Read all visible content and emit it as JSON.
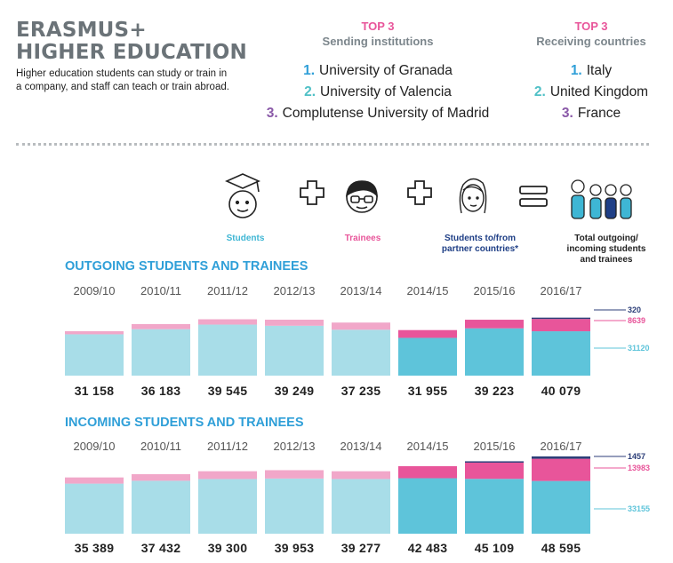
{
  "header": {
    "title_line1": "ERASMUS+",
    "title_line2": "HIGHER EDUCATION",
    "intro": "Higher education students can study or train in a company, and staff can teach or train abroad."
  },
  "sending": {
    "top_label": "TOP 3",
    "subtitle": "Sending institutions",
    "items": [
      {
        "rank": "1.",
        "name": "University of Granada"
      },
      {
        "rank": "2.",
        "name": "University of Valencia"
      },
      {
        "rank": "3.",
        "name": "Complutense University of Madrid"
      }
    ]
  },
  "receiving": {
    "top_label": "TOP 3",
    "subtitle": "Receiving countries",
    "items": [
      {
        "rank": "1.",
        "name": "Italy"
      },
      {
        "rank": "2.",
        "name": "United Kingdom"
      },
      {
        "rank": "3.",
        "name": "France"
      }
    ]
  },
  "legend": {
    "students": "Students",
    "trainees": "Trainees",
    "partner": "Students to/from partner countries*",
    "total": "Total outgoing/ incoming students and trainees",
    "plus": "+",
    "equals": "="
  },
  "colors": {
    "students": "#a8dde8",
    "students_last": "#5ec4da",
    "trainees": "#f1a7c9",
    "trainees_last": "#e8559a",
    "partner": "#2c3e78",
    "title_blue": "#2f9fd8",
    "legend_students": "#3eb6d4",
    "legend_trainees": "#e8559a",
    "legend_partner": "#1f3f86"
  },
  "chart_data": [
    {
      "type": "bar",
      "title": "OUTGOING STUDENTS AND TRAINEES",
      "stacked": true,
      "categories": [
        "2009/10",
        "2010/11",
        "2011/12",
        "2012/13",
        "2013/14",
        "2014/15",
        "2015/16",
        "2016/17"
      ],
      "totals": [
        "31 158",
        "36 183",
        "39 545",
        "39 249",
        "37 235",
        "31 955",
        "39 223",
        "40 079"
      ],
      "total_values": [
        31158,
        36183,
        39545,
        39249,
        37235,
        31955,
        39223,
        40079
      ],
      "series": [
        {
          "name": "Students",
          "values": [
            29000,
            32600,
            35800,
            35000,
            32200,
            26500,
            33200,
            31120
          ]
        },
        {
          "name": "Trainees",
          "values": [
            2158,
            3583,
            3745,
            4249,
            5035,
            5455,
            6023,
            8639
          ]
        },
        {
          "name": "Students to/from partner countries*",
          "values": [
            0,
            0,
            0,
            0,
            0,
            0,
            0,
            320
          ]
        }
      ],
      "last_labels": [
        "320",
        "8639",
        "31120"
      ],
      "ylim": [
        0,
        48595
      ]
    },
    {
      "type": "bar",
      "title": "INCOMING STUDENTS AND TRAINEES",
      "stacked": true,
      "categories": [
        "2009/10",
        "2010/11",
        "2011/12",
        "2012/13",
        "2013/14",
        "2014/15",
        "2015/16",
        "2016/17"
      ],
      "totals": [
        "35 389",
        "37 432",
        "39 300",
        "39 953",
        "39 277",
        "42 483",
        "45 109",
        "48 595"
      ],
      "total_values": [
        35389,
        37432,
        39300,
        39953,
        39277,
        42483,
        45109,
        48595
      ],
      "series": [
        {
          "name": "Students",
          "values": [
            31500,
            33300,
            34400,
            34700,
            34400,
            34900,
            34500,
            33155
          ]
        },
        {
          "name": "Trainees",
          "values": [
            3889,
            4132,
            4900,
            5253,
            4877,
            7583,
            10209,
            13983
          ]
        },
        {
          "name": "Students to/from partner countries*",
          "values": [
            0,
            0,
            0,
            0,
            0,
            0,
            400,
            1457
          ]
        }
      ],
      "last_labels": [
        "1457",
        "13983",
        "33155"
      ],
      "ylim": [
        0,
        48595
      ]
    }
  ]
}
